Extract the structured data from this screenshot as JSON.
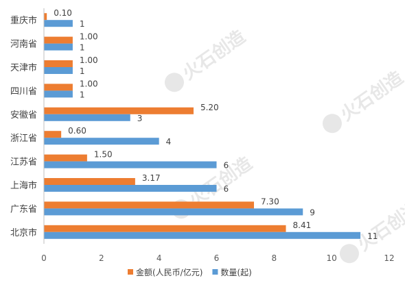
{
  "colors": {
    "amount": "#ED7D31",
    "count": "#5B9BD5",
    "axis": "#BFBFBF",
    "watermark": "#E7E7E7"
  },
  "chart_data": {
    "type": "bar",
    "orientation": "horizontal",
    "categories": [
      "重庆市",
      "河南省",
      "天津市",
      "四川省",
      "安徽省",
      "浙江省",
      "江苏省",
      "上海市",
      "广东省",
      "北京市"
    ],
    "series": [
      {
        "name": "金额(人民币/亿元)",
        "values": [
          0.1,
          1.0,
          1.0,
          1.0,
          5.2,
          0.6,
          1.5,
          3.17,
          7.3,
          8.41
        ],
        "labels": [
          "0.10",
          "1.00",
          "1.00",
          "1.00",
          "5.20",
          "0.60",
          "1.50",
          "3.17",
          "7.30",
          "8.41"
        ]
      },
      {
        "name": "数量(起)",
        "values": [
          1,
          1,
          1,
          1,
          3,
          4,
          6,
          6,
          9,
          11
        ],
        "labels": [
          "1",
          "1",
          "1",
          "1",
          "3",
          "4",
          "6",
          "6",
          "9",
          "11"
        ]
      }
    ],
    "xlim": [
      0,
      12
    ],
    "xticks": [
      "0",
      "2",
      "4",
      "6",
      "8",
      "10",
      "12"
    ],
    "grid": false,
    "legend": "bottom",
    "title": "",
    "xlabel": "",
    "ylabel": ""
  },
  "watermark": {
    "text": "火石创造"
  }
}
